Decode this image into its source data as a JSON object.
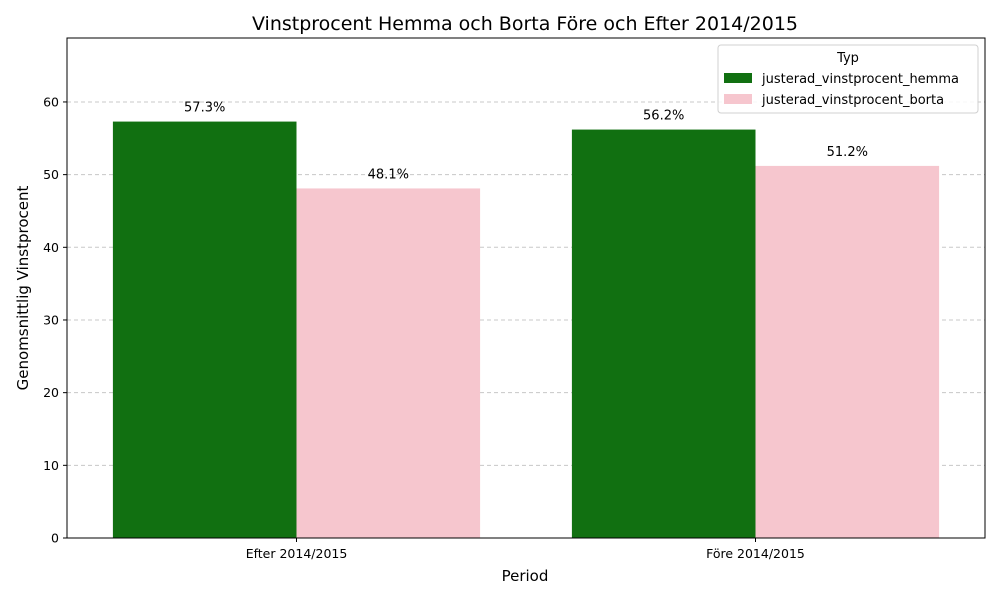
{
  "chart_data": {
    "type": "bar",
    "title": "Vinstprocent Hemma och Borta Före och Efter 2014/2015",
    "xlabel": "Period",
    "ylabel": "Genomsnittlig Vinstprocent",
    "categories": [
      "Efter 2014/2015",
      "Före 2014/2015"
    ],
    "series": [
      {
        "name": "justerad_vinstprocent_hemma",
        "values": [
          57.3,
          56.2
        ],
        "labels": [
          "57.3%",
          "56.2%"
        ],
        "color": "#117011"
      },
      {
        "name": "justerad_vinstprocent_borta",
        "values": [
          48.1,
          51.2
        ],
        "labels": [
          "48.1%",
          "51.2%"
        ],
        "color": "#f6c6ce"
      }
    ],
    "ylim": [
      0,
      68.8
    ],
    "yticks": [
      0,
      10,
      20,
      30,
      40,
      50,
      60
    ],
    "grid": "y-dashed",
    "legend": {
      "title": "Typ",
      "position": "top-right"
    }
  }
}
